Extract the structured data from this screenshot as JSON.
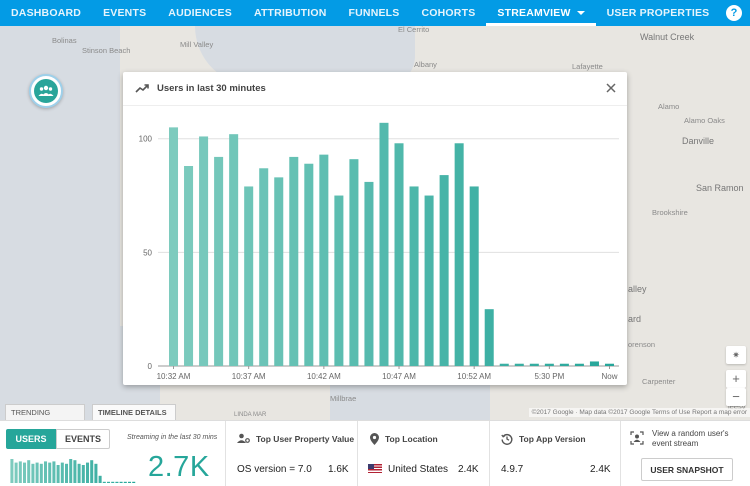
{
  "nav": {
    "tabs": [
      {
        "label": "DASHBOARD"
      },
      {
        "label": "EVENTS"
      },
      {
        "label": "AUDIENCES"
      },
      {
        "label": "ATTRIBUTION"
      },
      {
        "label": "FUNNELS"
      },
      {
        "label": "COHORTS"
      },
      {
        "label": "STREAMVIEW",
        "active": true
      },
      {
        "label": "USER PROPERTIES"
      }
    ],
    "help_label": "?"
  },
  "map": {
    "labels": {
      "bolinas": "Bolinas",
      "stinson": "Stinson Beach",
      "mill_valley": "Mill Valley",
      "el_cerrito": "El Cerrito",
      "albany": "Albany",
      "lafayette": "Lafayette",
      "walnut_creek": "Walnut Creek",
      "alamo": "Alamo",
      "alamo_oaks": "Alamo Oaks",
      "danville": "Danville",
      "san_ramon": "San Ramon",
      "brookshire": "Brookshire",
      "valley": "alley",
      "ard": "ard",
      "orenson": "orenson",
      "carpenter": "Carpenter",
      "linda_mar": "LINDA MAR",
      "millbrae": "Millbrae",
      "leesville": "leesv"
    },
    "attribution": "©2017 Google · Map data ©2017 Google   Terms of Use   Report a map error",
    "zoom_in": "+",
    "zoom_out": "−",
    "mini_tabs": {
      "trending": "TRENDING",
      "timeline": "TIMELINE DETAILS"
    }
  },
  "card": {
    "title": "Users in last 30 minutes",
    "close_label": "×"
  },
  "chart_data": {
    "type": "bar",
    "title": "Users in last 30 minutes",
    "xlabel": "",
    "ylabel": "",
    "ylim": [
      0,
      110
    ],
    "yticks": [
      0,
      50,
      100
    ],
    "x_tick_labels": [
      "10:32 AM",
      "10:37 AM",
      "10:42 AM",
      "10:47 AM",
      "10:52 AM",
      "5:30 PM",
      "Now"
    ],
    "grid": true,
    "values": [
      105,
      88,
      101,
      92,
      102,
      79,
      87,
      83,
      92,
      89,
      93,
      75,
      91,
      81,
      107,
      98,
      79,
      75,
      84,
      98,
      79,
      25,
      1,
      1,
      1,
      1,
      1,
      1,
      2,
      1
    ],
    "colors": {
      "start": "#7dcbbe",
      "end": "#26a69a"
    }
  },
  "bottom": {
    "users_tab": "USERS",
    "events_tab": "EVENTS",
    "streaming_label": "Streaming in the last 30 mins",
    "users_count": "2.7K",
    "mini_values": [
      20,
      17,
      18,
      17,
      19,
      16,
      17,
      16,
      18,
      17,
      18,
      15,
      17,
      16,
      20,
      19,
      16,
      15,
      17,
      19,
      16,
      6,
      1,
      1,
      1,
      1,
      1,
      1,
      1,
      1
    ],
    "top_property": {
      "title": "Top User Property Value",
      "value": "OS version = 7.0",
      "count": "1.6K"
    },
    "top_location": {
      "title": "Top Location",
      "value": "United States",
      "count": "2.4K"
    },
    "top_app_version": {
      "title": "Top App Version",
      "value": "4.9.7",
      "count": "2.4K"
    },
    "random_user_text": "View a random user's event stream",
    "snapshot_button": "USER SNAPSHOT"
  }
}
